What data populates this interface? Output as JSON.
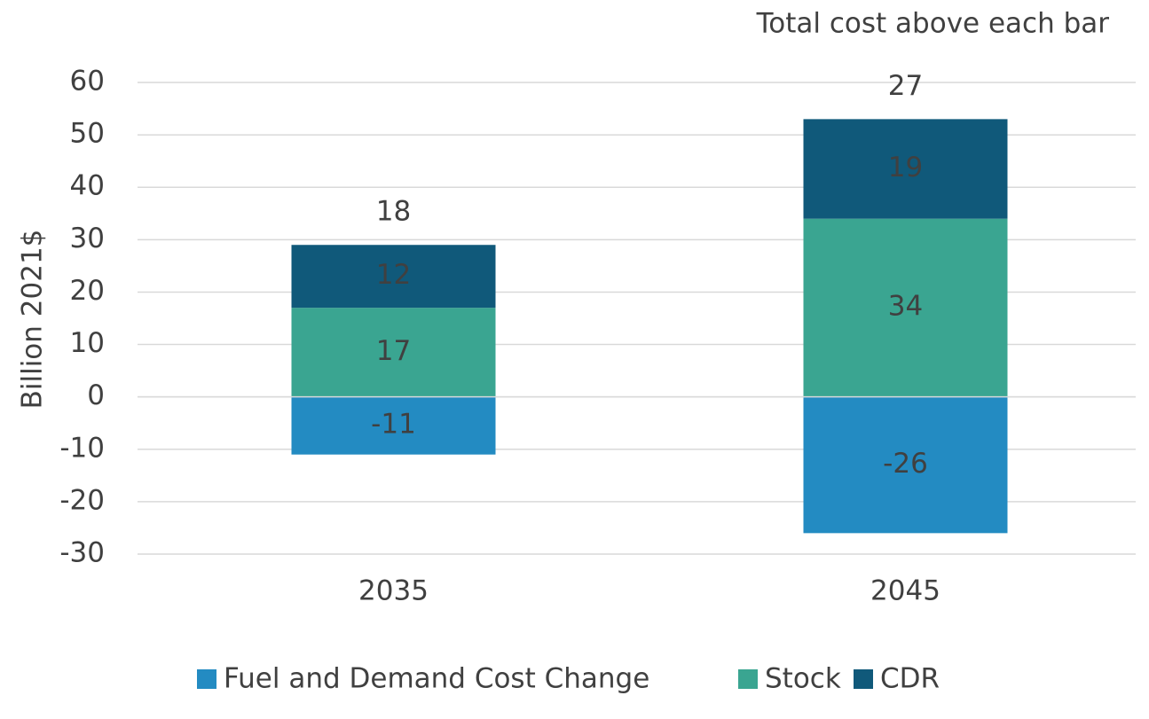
{
  "chart_data": {
    "type": "stacked_bar",
    "annotation": "Total cost above each bar",
    "y_label": "Billion 2021$",
    "categories": [
      "2035",
      "2045"
    ],
    "series": [
      {
        "name": "Fuel and Demand Cost Change",
        "color": "#238bc2",
        "values": [
          -11,
          -26
        ]
      },
      {
        "name": "Stock",
        "color": "#3aa591",
        "values": [
          17,
          34
        ]
      },
      {
        "name": "CDR",
        "color": "#10597a",
        "values": [
          12,
          19
        ]
      }
    ],
    "totals": [
      18,
      27
    ],
    "ylim": [
      -30,
      60
    ],
    "yticks": [
      -30,
      -20,
      -10,
      0,
      10,
      20,
      30,
      40,
      50,
      60
    ],
    "grid": true,
    "legend": "bottom"
  }
}
